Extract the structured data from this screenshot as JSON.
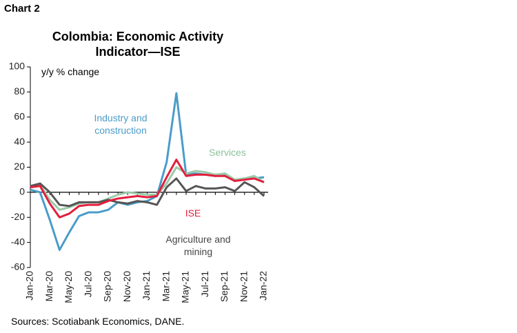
{
  "chart_label": "Chart 2",
  "chart_data": {
    "type": "line",
    "title": "Colombia: Economic Activity Indicator—ISE",
    "y_label": "y/y % change",
    "source": "Sources: Scotiabank Economics, DANE.",
    "categories": [
      "Jan-20",
      null,
      "Mar-20",
      null,
      "May-20",
      null,
      "Jul-20",
      null,
      "Sep-20",
      null,
      "Nov-20",
      null,
      "Jan-21",
      null,
      "Mar-21",
      null,
      "May-21",
      null,
      "Jul-21",
      null,
      "Sep-21",
      null,
      "Nov-21",
      null,
      "Jan-22"
    ],
    "ylim": [
      -60,
      100
    ],
    "yticks": [
      -60,
      -40,
      -20,
      0,
      20,
      40,
      60,
      80,
      100
    ],
    "series": [
      {
        "name": "Industry and construction",
        "color": "#4a9cc9",
        "values": [
          2,
          0,
          -22,
          -46,
          -32,
          -19,
          -16,
          -16,
          -14,
          -8,
          -10,
          -8,
          -7,
          -3,
          24,
          79,
          14,
          15,
          14,
          13,
          14,
          10,
          11,
          11,
          12
        ]
      },
      {
        "name": "Services",
        "color": "#9ccaa8",
        "values": [
          5,
          6,
          -6,
          -14,
          -12,
          -9,
          -8,
          -8,
          -5,
          -2,
          0,
          -1,
          -2,
          -2,
          7,
          20,
          15,
          17,
          16,
          14,
          15,
          10,
          11,
          13,
          8
        ]
      },
      {
        "name": "Agriculture and mining",
        "color": "#555555",
        "values": [
          5,
          7,
          0,
          -10,
          -11,
          -8,
          -8,
          -8,
          -6,
          -8,
          -9,
          -7,
          -8,
          -10,
          4,
          11,
          1,
          5,
          3,
          3,
          4,
          1,
          8,
          4,
          -3
        ]
      },
      {
        "name": "ISE",
        "color": "#e31e3c",
        "values": [
          4,
          5,
          -9,
          -20,
          -17,
          -11,
          -10,
          -10,
          -7,
          -5,
          -4,
          -3,
          -4,
          -3,
          12,
          26,
          13,
          14,
          14,
          13,
          13,
          9,
          10,
          11,
          8
        ]
      }
    ]
  }
}
